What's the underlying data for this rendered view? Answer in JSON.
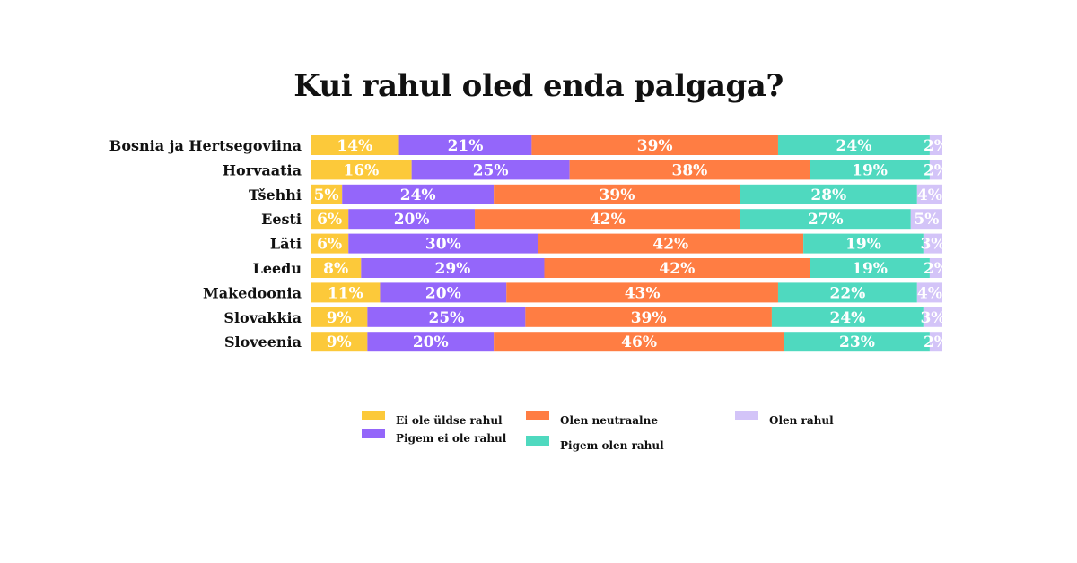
{
  "title": "Kui rahul oled enda palgaga?",
  "colors": {
    "ei_ole": "#FCC93A",
    "pigem_ei": "#9466FA",
    "neutraalne": "#FF7D43",
    "pigem_olen": "#4FD9BF",
    "olen_rahul": "#D3C4F8"
  },
  "chart_data": {
    "type": "bar",
    "orientation": "horizontal",
    "stacked": true,
    "title": "Kui rahul oled enda palgaga?",
    "categories": [
      "Bosnia ja Hertsegoviina",
      "Horvaatia",
      "Tšehhi",
      "Eesti",
      "Läti",
      "Leedu",
      "Makedoonia",
      "Slovakkia",
      "Sloveenia"
    ],
    "series": [
      {
        "name": "Ei ole üldse rahul",
        "color_key": "ei_ole",
        "values": [
          14,
          16,
          5,
          6,
          6,
          8,
          11,
          9,
          9
        ]
      },
      {
        "name": "Pigem ei ole rahul",
        "color_key": "pigem_ei",
        "values": [
          21,
          25,
          24,
          20,
          30,
          29,
          20,
          25,
          20
        ]
      },
      {
        "name": "Olen neutraalne",
        "color_key": "neutraalne",
        "values": [
          39,
          38,
          39,
          42,
          42,
          42,
          43,
          39,
          46
        ]
      },
      {
        "name": "Pigem olen rahul",
        "color_key": "pigem_olen",
        "values": [
          24,
          19,
          28,
          27,
          19,
          19,
          22,
          24,
          23
        ]
      },
      {
        "name": "Olen rahul",
        "color_key": "olen_rahul",
        "values": [
          2,
          2,
          4,
          5,
          3,
          2,
          4,
          3,
          2
        ]
      }
    ],
    "unit": "%",
    "legend_position": "bottom",
    "grid": false
  },
  "legend": {
    "items": [
      {
        "label": "Ei ole üldse rahul",
        "color_key": "ei_ole"
      },
      {
        "label": "Pigem ei ole rahul",
        "color_key": "pigem_ei"
      },
      {
        "label": "Olen neutraalne",
        "color_key": "neutraalne"
      },
      {
        "label": "Pigem olen rahul",
        "color_key": "pigem_olen"
      },
      {
        "label": "Olen rahul",
        "color_key": "olen_rahul"
      }
    ]
  }
}
